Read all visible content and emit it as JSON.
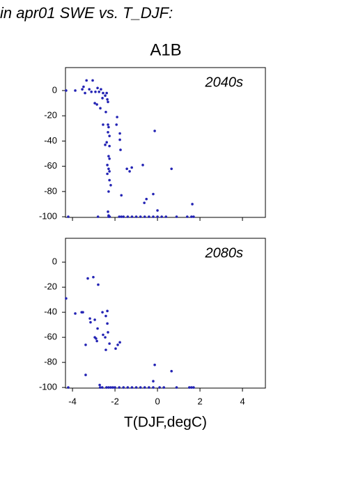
{
  "header": {
    "title": "in apr01 SWE vs. T_DJF:",
    "subtitle": "A1B"
  },
  "chart_data": [
    {
      "type": "scatter",
      "annotation": "2040s",
      "color": "#2323b4",
      "xlim": [
        -4.33,
        5.08
      ],
      "ylim": [
        -100.5,
        18.2
      ],
      "xticks": [
        -4,
        -2,
        0,
        2,
        4
      ],
      "show_xtick_labels": false,
      "yticks": [
        0,
        -20,
        -40,
        -60,
        -80,
        -100
      ],
      "x": [
        -4.3,
        -3.87,
        -3.54,
        -3.48,
        -3.34,
        -3.05,
        -3.41,
        -3.21,
        -3.11,
        -2.92,
        -2.82,
        -2.75,
        -2.66,
        -2.56,
        -2.95,
        -2.85,
        -2.69,
        -2.59,
        -2.46,
        -2.36,
        -2.39,
        -2.33,
        -2.43,
        -2.56,
        -2.33,
        -2.3,
        -2.33,
        -2.26,
        -2.39,
        -2.46,
        -2.26,
        -2.3,
        -2.26,
        -2.36,
        -2.3,
        -2.26,
        -2.36,
        -2.26,
        -2.3,
        -2.2,
        -2.33,
        -2.3,
        -1.9,
        -1.93,
        -1.77,
        -1.77,
        -1.74,
        -1.44,
        -1.31,
        -1.21,
        -0.69,
        -0.13,
        0.66,
        -1.7,
        -0.62,
        -0.52,
        -0.2,
        0.0,
        1.64,
        -4.2,
        -2.8,
        -2.3,
        -2.25,
        -1.8,
        -1.7,
        -1.6,
        -1.4,
        -1.2,
        -1.0,
        -0.8,
        -0.6,
        -0.4,
        -0.2,
        0.0,
        0.2,
        0.4,
        0.9,
        1.4,
        1.6,
        1.7
      ],
      "values": [
        0,
        0,
        1,
        3,
        8,
        8,
        -2,
        1,
        -1,
        -1,
        2,
        -1,
        1,
        -2,
        -10,
        -11,
        -14,
        -6,
        -4,
        -7,
        -2,
        -9,
        -17,
        -27,
        -27,
        -29,
        -33,
        -36,
        -41,
        -43,
        -44,
        -52,
        -54,
        -59,
        -62,
        -64,
        -66,
        -71,
        -80,
        -75,
        -96,
        -99,
        -21,
        -27,
        -34,
        -39,
        -47,
        -62,
        -64,
        -61,
        -59,
        -32,
        -62,
        -83,
        -89,
        -86,
        -82,
        -95,
        -90,
        -100,
        -100,
        -100,
        -100,
        -100,
        -100,
        -100,
        -100,
        -100,
        -100,
        -100,
        -100,
        -100,
        -100,
        -100,
        -100,
        -100,
        -100,
        -100,
        -100,
        -100
      ]
    },
    {
      "type": "scatter",
      "annotation": "2080s",
      "color": "#2323b4",
      "xlabel": "T(DJF,degC)",
      "xlim": [
        -4.33,
        5.08
      ],
      "ylim": [
        -100.5,
        19
      ],
      "xticks": [
        -4,
        -2,
        0,
        2,
        4
      ],
      "show_xtick_labels": true,
      "yticks": [
        0,
        -20,
        -40,
        -60,
        -80,
        -100
      ],
      "x": [
        -4.3,
        -3.87,
        -3.57,
        -3.51,
        -3.38,
        -3.38,
        -3.28,
        -3.02,
        -2.79,
        -3.18,
        -3.15,
        -2.95,
        -2.95,
        -2.89,
        -2.82,
        -2.85,
        -2.59,
        -2.36,
        -2.43,
        -2.36,
        -2.56,
        -2.46,
        -2.33,
        -2.26,
        -2.43,
        -1.97,
        -1.87,
        -1.77,
        -0.13,
        0.66,
        -0.2,
        -2.72,
        -4.2,
        -2.7,
        -2.6,
        -2.4,
        -2.3,
        -2.2,
        -2.1,
        -2.0,
        -1.8,
        -1.6,
        -1.4,
        -1.2,
        -1.0,
        -0.8,
        -0.6,
        -0.4,
        -0.2,
        0.1,
        0.3,
        0.9,
        1.5,
        1.6,
        1.7
      ],
      "values": [
        -29,
        -41,
        -40,
        -40,
        -66,
        -90,
        -13,
        -12,
        -18,
        -45,
        -48,
        -46,
        -60,
        -61,
        -53,
        -63,
        -40,
        -39,
        -43,
        -49,
        -58,
        -60,
        -56,
        -65,
        -70,
        -69,
        -66,
        -64,
        -82,
        -87,
        -95,
        -98,
        -100,
        -100,
        -100,
        -100,
        -100,
        -100,
        -100,
        -100,
        -100,
        -100,
        -100,
        -100,
        -100,
        -100,
        -100,
        -100,
        -100,
        -100,
        -100,
        -100,
        -100,
        -100,
        -100
      ]
    }
  ]
}
